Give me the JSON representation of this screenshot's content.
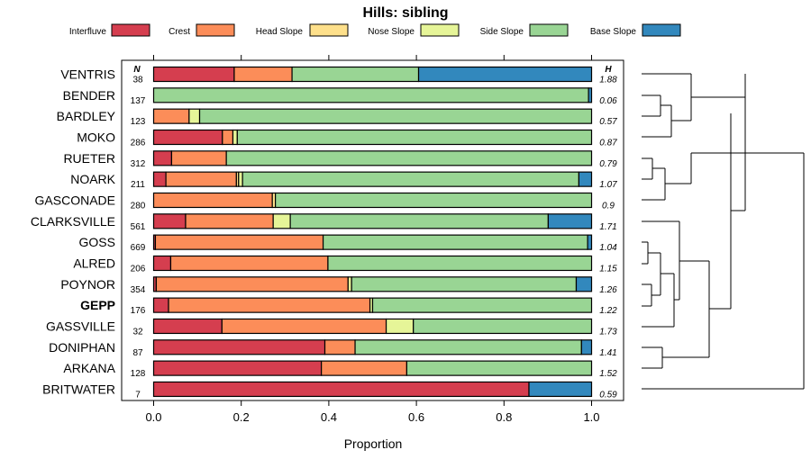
{
  "chart_data": {
    "type": "bar",
    "stacked": true,
    "orientation": "horizontal",
    "title": "Hills: sibling",
    "xlabel": "Proportion",
    "xlim": [
      0,
      1
    ],
    "xticks": [
      "0.0",
      "0.2",
      "0.4",
      "0.6",
      "0.8",
      "1.0"
    ],
    "column_headers": {
      "n": "N",
      "h": "H"
    },
    "series": [
      {
        "name": "Interfluve",
        "color": "#d53e4f"
      },
      {
        "name": "Crest",
        "color": "#fc8d59"
      },
      {
        "name": "Head Slope",
        "color": "#fee08b"
      },
      {
        "name": "Nose Slope",
        "color": "#e6f598"
      },
      {
        "name": "Side Slope",
        "color": "#99d594"
      },
      {
        "name": "Base Slope",
        "color": "#3288bd"
      }
    ],
    "rows": [
      {
        "label": "VENTRIS",
        "n": "38",
        "h": "1.88",
        "bold": false,
        "values": [
          0.184,
          0.132,
          0.0,
          0.0,
          0.289,
          0.395
        ]
      },
      {
        "label": "BENDER",
        "n": "137",
        "h": "0.06",
        "bold": false,
        "values": [
          0.0,
          0.0,
          0.0,
          0.0,
          0.993,
          0.007
        ]
      },
      {
        "label": "BARDLEY",
        "n": "123",
        "h": "0.57",
        "bold": false,
        "values": [
          0.0,
          0.081,
          0.0,
          0.024,
          0.895,
          0.0
        ]
      },
      {
        "label": "MOKO",
        "n": "286",
        "h": "0.87",
        "bold": false,
        "values": [
          0.157,
          0.024,
          0.0,
          0.01,
          0.809,
          0.0
        ]
      },
      {
        "label": "RUETER",
        "n": "312",
        "h": "0.79",
        "bold": false,
        "values": [
          0.041,
          0.125,
          0.0,
          0.0,
          0.834,
          0.0
        ]
      },
      {
        "label": "NOARK",
        "n": "211",
        "h": "1.07",
        "bold": false,
        "values": [
          0.028,
          0.161,
          0.005,
          0.009,
          0.768,
          0.029
        ]
      },
      {
        "label": "GASCONADE",
        "n": "280",
        "h": "0.9",
        "bold": false,
        "values": [
          0.0,
          0.271,
          0.007,
          0.0,
          0.722,
          0.0
        ]
      },
      {
        "label": "CLARKSVILLE",
        "n": "561",
        "h": "1.71",
        "bold": false,
        "values": [
          0.073,
          0.2,
          0.0,
          0.039,
          0.589,
          0.099
        ]
      },
      {
        "label": "GOSS",
        "n": "669",
        "h": "1.04",
        "bold": false,
        "values": [
          0.004,
          0.383,
          0.0,
          0.0,
          0.604,
          0.009
        ]
      },
      {
        "label": "ALRED",
        "n": "206",
        "h": "1.15",
        "bold": false,
        "values": [
          0.039,
          0.359,
          0.0,
          0.0,
          0.602,
          0.0
        ]
      },
      {
        "label": "POYNOR",
        "n": "354",
        "h": "1.26",
        "bold": false,
        "values": [
          0.006,
          0.438,
          0.0,
          0.008,
          0.513,
          0.035
        ]
      },
      {
        "label": "GEPP",
        "n": "176",
        "h": "1.22",
        "bold": true,
        "values": [
          0.034,
          0.46,
          0.0,
          0.006,
          0.5,
          0.0
        ]
      },
      {
        "label": "GASSVILLE",
        "n": "32",
        "h": "1.73",
        "bold": false,
        "values": [
          0.156,
          0.375,
          0.0,
          0.062,
          0.407,
          0.0
        ]
      },
      {
        "label": "DONIPHAN",
        "n": "87",
        "h": "1.41",
        "bold": false,
        "values": [
          0.391,
          0.069,
          0.0,
          0.0,
          0.517,
          0.023
        ]
      },
      {
        "label": "ARKANA",
        "n": "128",
        "h": "1.52",
        "bold": false,
        "values": [
          0.383,
          0.195,
          0.0,
          0.0,
          0.422,
          0.0
        ]
      },
      {
        "label": "BRITWATER",
        "n": "7",
        "h": "0.59",
        "bold": false,
        "values": [
          0.857,
          0.0,
          0.0,
          0.0,
          0.0,
          0.143
        ]
      }
    ]
  }
}
